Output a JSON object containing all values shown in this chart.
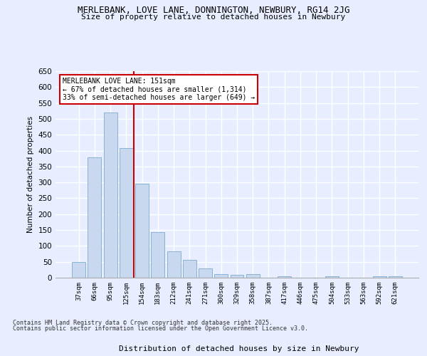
{
  "title1": "MERLEBANK, LOVE LANE, DONNINGTON, NEWBURY, RG14 2JG",
  "title2": "Size of property relative to detached houses in Newbury",
  "xlabel": "Distribution of detached houses by size in Newbury",
  "ylabel": "Number of detached properties",
  "categories": [
    "37sqm",
    "66sqm",
    "95sqm",
    "125sqm",
    "154sqm",
    "183sqm",
    "212sqm",
    "241sqm",
    "271sqm",
    "300sqm",
    "329sqm",
    "358sqm",
    "387sqm",
    "417sqm",
    "446sqm",
    "475sqm",
    "504sqm",
    "533sqm",
    "563sqm",
    "592sqm",
    "621sqm"
  ],
  "values": [
    50,
    378,
    520,
    408,
    295,
    143,
    84,
    55,
    30,
    11,
    9,
    11,
    1,
    5,
    1,
    1,
    4,
    1,
    1,
    4,
    4
  ],
  "bar_color": "#c8d8ee",
  "bar_edge_color": "#7aaacc",
  "vline_color": "#cc0000",
  "annotation_title": "MERLEBANK LOVE LANE: 151sqm",
  "annotation_line1": "← 67% of detached houses are smaller (1,314)",
  "annotation_line2": "33% of semi-detached houses are larger (649) →",
  "ylim": [
    0,
    650
  ],
  "yticks": [
    0,
    50,
    100,
    150,
    200,
    250,
    300,
    350,
    400,
    450,
    500,
    550,
    600,
    650
  ],
  "footer1": "Contains HM Land Registry data © Crown copyright and database right 2025.",
  "footer2": "Contains public sector information licensed under the Open Government Licence v3.0.",
  "bg_color": "#e8eeff",
  "plot_bg_color": "#e8eeff",
  "grid_color": "#ffffff"
}
